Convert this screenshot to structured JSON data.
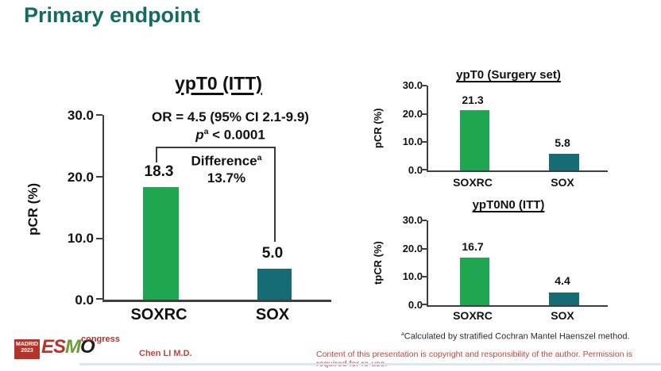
{
  "slide": {
    "title": "Primary endpoint",
    "footnote": {
      "sup": "a",
      "text": "Calculated by stratified Cochran Mantel Haenszel method."
    },
    "presenter": "Chen LI M.D.",
    "copyright": "Content of this presentation is copyright and responsibility of the author. Permission is required for re-use.",
    "logo": {
      "location": "MADRID",
      "year": "2023",
      "letters": [
        "E",
        "S",
        "M",
        "O"
      ],
      "congress": "congress"
    }
  },
  "colors": {
    "title_teal": "#156a62",
    "bar_green": "#1ea750",
    "bar_teal": "#156c74",
    "axis": "#3f3f3f",
    "footer_red": "#c0443c",
    "esmo_red": "#b5342a",
    "esmo_green": "#6f9a34",
    "esmo_black": "#1c1c1c"
  },
  "chart_data": [
    {
      "type": "bar",
      "title": "ypT0 (ITT)",
      "ylabel": "pCR (%)",
      "categories": [
        "SOXRC",
        "SOX"
      ],
      "values": [
        18.3,
        5.0
      ],
      "value_labels": [
        "18.3",
        "5.0"
      ],
      "ylim": [
        0,
        30
      ],
      "yticks": [
        "30.0",
        "20.0",
        "10.0",
        "0.0"
      ],
      "grid": false,
      "legend": "none",
      "annotations": {
        "or_line": "OR = 4.5 (95% CI 2.1-9.9)",
        "p_prefix": "p",
        "p_sup": "a",
        "p_rest": " < 0.0001",
        "diff_label": "Difference",
        "diff_sup": "a",
        "diff_value": "13.7%"
      }
    },
    {
      "type": "bar",
      "title": "ypT0 (Surgery set)",
      "ylabel": "pCR (%)",
      "categories": [
        "SOXRC",
        "SOX"
      ],
      "values": [
        21.3,
        5.8
      ],
      "value_labels": [
        "21.3",
        "5.8"
      ],
      "ylim": [
        0,
        30
      ],
      "yticks": [
        "30.0",
        "20.0",
        "10.0",
        "0.0"
      ],
      "grid": false,
      "legend": "none"
    },
    {
      "type": "bar",
      "title": "ypT0N0 (ITT)",
      "ylabel": "tpCR (%)",
      "categories": [
        "SOXRC",
        "SOX"
      ],
      "values": [
        16.7,
        4.4
      ],
      "value_labels": [
        "16.7",
        "4.4"
      ],
      "ylim": [
        0,
        30
      ],
      "yticks": [
        "30.0",
        "20.0",
        "10.0",
        "0.0"
      ],
      "grid": false,
      "legend": "none"
    }
  ]
}
